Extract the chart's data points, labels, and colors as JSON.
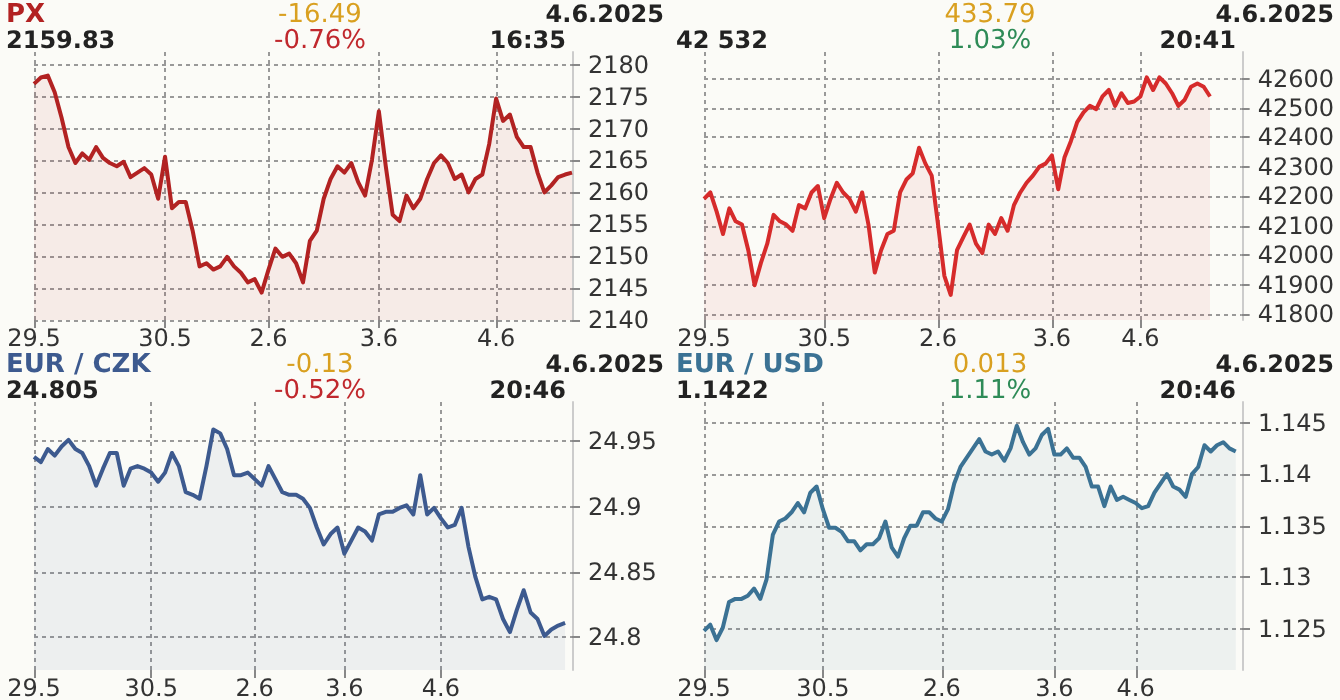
{
  "chart_data": [
    {
      "type": "area",
      "title": "PX",
      "annotations": [
        "2159.83",
        "-16.49",
        "-0.76%",
        "4.6.2025",
        "16:35"
      ],
      "categories": [
        "29.5",
        null,
        null,
        null,
        null,
        null,
        null,
        null,
        null,
        null,
        null,
        null,
        null,
        null,
        null,
        null,
        null,
        null,
        null,
        "30.5",
        null,
        null,
        null,
        null,
        null,
        null,
        null,
        null,
        null,
        null,
        null,
        null,
        null,
        null,
        "2.6",
        null,
        null,
        null,
        null,
        null,
        null,
        null,
        null,
        null,
        null,
        null,
        null,
        null,
        null,
        null,
        "3.6",
        null,
        null,
        null,
        null,
        null,
        null,
        null,
        null,
        null,
        null,
        null,
        null,
        null,
        null,
        null,
        null,
        "4.6",
        null,
        null,
        null,
        null,
        null,
        null,
        null,
        null,
        null,
        null,
        null
      ],
      "series": [
        {
          "color": "#b22222",
          "values": [
            2177.0,
            2178.0,
            2178.3,
            2175.7,
            2171.7,
            2167.1,
            2164.6,
            2166.1,
            2165.1,
            2167.1,
            2165.4,
            2164.6,
            2164.1,
            2164.8,
            2162.4,
            2163.1,
            2163.8,
            2162.8,
            2159.0,
            2165.6,
            2157.5,
            2158.5,
            2158.5,
            2154.0,
            2148.4,
            2148.9,
            2147.9,
            2148.4,
            2149.9,
            2148.4,
            2147.4,
            2145.9,
            2146.4,
            2144.3,
            2147.9,
            2151.2,
            2149.9,
            2150.4,
            2148.9,
            2145.9,
            2152.4,
            2154.0,
            2159.0,
            2162.1,
            2164.1,
            2163.1,
            2164.6,
            2161.6,
            2159.5,
            2165.1,
            2172.7,
            2164.1,
            2156.5,
            2155.5,
            2159.5,
            2157.5,
            2159.0,
            2162.1,
            2164.6,
            2165.8,
            2164.6,
            2162.1,
            2162.8,
            2160.0,
            2162.1,
            2162.8,
            2167.6,
            2174.7,
            2171.2,
            2172.2,
            2168.7,
            2167.1,
            2167.1,
            2163.1,
            2160.0,
            2161.1,
            2162.4,
            2162.8,
            2163.1
          ]
        }
      ],
      "ylim": [
        2140,
        2182
      ],
      "yticks": [
        2140,
        2145,
        2150,
        2155,
        2160,
        2165,
        2170,
        2175,
        2180
      ],
      "grid": true
    },
    {
      "type": "area",
      "annotations": [
        "42 532",
        "433.79",
        "1.03%",
        "4.6.2025",
        "20:41"
      ],
      "categories": [
        "29.5",
        null,
        null,
        null,
        null,
        null,
        null,
        null,
        null,
        null,
        null,
        null,
        null,
        null,
        null,
        null,
        null,
        null,
        null,
        "30.5",
        null,
        null,
        null,
        null,
        null,
        null,
        null,
        null,
        null,
        null,
        null,
        null,
        null,
        null,
        null,
        null,
        null,
        "2.6",
        null,
        null,
        null,
        null,
        null,
        null,
        null,
        null,
        null,
        null,
        null,
        null,
        null,
        null,
        null,
        null,
        null,
        "3.6",
        null,
        null,
        null,
        null,
        null,
        null,
        null,
        null,
        null,
        null,
        null,
        null,
        null,
        "4.6",
        null,
        null,
        null,
        null,
        null,
        null,
        null,
        null,
        null,
        null,
        null,
        null,
        null,
        null,
        null,
        null
      ],
      "series": [
        {
          "color": "#d62b2b",
          "values": [
            42191,
            42213,
            42148,
            42072,
            42159,
            42115,
            42104,
            42017,
            41898,
            41974,
            42039,
            42137,
            42115,
            42104,
            42083,
            42170,
            42159,
            42213,
            42235,
            42126,
            42191,
            42246,
            42213,
            42191,
            42148,
            42213,
            42104,
            41941,
            42017,
            42072,
            42083,
            42213,
            42257,
            42278,
            42365,
            42311,
            42270,
            42104,
            41930,
            41865,
            42017,
            42061,
            42104,
            42039,
            42007,
            42104,
            42072,
            42126,
            42083,
            42170,
            42213,
            42246,
            42270,
            42300,
            42311,
            42339,
            42224,
            42333,
            42387,
            42452,
            42485,
            42507,
            42496,
            42539,
            42561,
            42507,
            42550,
            42517,
            42522,
            42539,
            42604,
            42561,
            42604,
            42583,
            42550,
            42507,
            42528,
            42572,
            42583,
            42572,
            42539,
            null,
            null,
            null,
            null,
            null
          ]
        }
      ],
      "ylim": [
        41780,
        42690
      ],
      "yticks": [
        41800,
        41900,
        42000,
        42100,
        42200,
        42300,
        42400,
        42500,
        42600
      ],
      "grid": true
    },
    {
      "type": "area",
      "title": "EUR / CZK",
      "annotations": [
        "24.805",
        "-0.13",
        "-0.52%",
        "4.6.2025",
        "20:46"
      ],
      "categories": [
        "29.5",
        null,
        null,
        null,
        null,
        null,
        null,
        null,
        null,
        null,
        null,
        null,
        null,
        null,
        null,
        null,
        null,
        "30.5",
        null,
        null,
        null,
        null,
        null,
        null,
        null,
        null,
        null,
        null,
        null,
        null,
        null,
        null,
        "2.6",
        null,
        null,
        null,
        null,
        null,
        null,
        null,
        null,
        null,
        null,
        null,
        null,
        "3.6",
        null,
        null,
        null,
        null,
        null,
        null,
        null,
        null,
        null,
        null,
        null,
        null,
        null,
        "4.6",
        null,
        null,
        null,
        null,
        null,
        null,
        null,
        null,
        null,
        null,
        null,
        null,
        null,
        null,
        null,
        null,
        null,
        null,
        null
      ],
      "series": [
        {
          "color": "#3d5a8f",
          "values": [
            24.938,
            24.934,
            24.944,
            24.939,
            24.946,
            24.951,
            24.944,
            24.941,
            24.931,
            24.916,
            24.929,
            24.941,
            24.941,
            24.916,
            24.929,
            24.931,
            24.929,
            24.926,
            24.919,
            24.926,
            24.941,
            24.931,
            24.911,
            24.909,
            24.906,
            24.931,
            24.959,
            24.956,
            24.944,
            24.924,
            24.924,
            24.926,
            24.921,
            24.916,
            24.931,
            24.921,
            24.911,
            24.909,
            24.909,
            24.906,
            24.899,
            24.884,
            24.871,
            24.879,
            24.884,
            24.864,
            24.874,
            24.884,
            24.881,
            24.874,
            24.894,
            24.896,
            24.896,
            24.899,
            24.901,
            24.894,
            24.924,
            24.894,
            24.899,
            24.891,
            24.884,
            24.886,
            24.899,
            24.869,
            24.846,
            24.829,
            24.831,
            24.829,
            24.814,
            24.804,
            24.821,
            24.836,
            24.819,
            24.814,
            24.801,
            24.806,
            24.809,
            24.811,
            null
          ]
        }
      ],
      "ylim": [
        24.775,
        24.98
      ],
      "yticks": [
        24.8,
        24.85,
        24.9,
        24.95
      ],
      "grid": true
    },
    {
      "type": "area",
      "title": "EUR / USD",
      "annotations": [
        "1.1422",
        "0.013",
        "1.11%",
        "4.6.2025",
        "20:46"
      ],
      "categories": [
        "29.5",
        null,
        null,
        null,
        null,
        null,
        null,
        null,
        null,
        null,
        null,
        null,
        null,
        null,
        null,
        null,
        null,
        null,
        null,
        "30.5",
        null,
        null,
        null,
        null,
        null,
        null,
        null,
        null,
        null,
        null,
        null,
        null,
        null,
        null,
        null,
        null,
        null,
        null,
        "2.6",
        null,
        null,
        null,
        null,
        null,
        null,
        null,
        null,
        null,
        null,
        null,
        null,
        null,
        null,
        null,
        null,
        null,
        "3.6",
        null,
        null,
        null,
        null,
        null,
        null,
        null,
        null,
        null,
        null,
        null,
        null,
        "4.6",
        null,
        null,
        null,
        null,
        null,
        null,
        null,
        null,
        null,
        null,
        null,
        null,
        null,
        null,
        null,
        null,
        null
      ],
      "series": [
        {
          "color": "#3b7294",
          "values": [
            1.1248,
            1.1254,
            1.1239,
            1.1251,
            1.1276,
            1.1279,
            1.1279,
            1.1282,
            1.1289,
            1.1279,
            1.1298,
            1.1341,
            1.1354,
            1.1357,
            1.1363,
            1.1372,
            1.1363,
            1.1382,
            1.1388,
            1.1366,
            1.1348,
            1.1348,
            1.1344,
            1.1335,
            1.1335,
            1.1326,
            1.1332,
            1.1332,
            1.1338,
            1.1354,
            1.1329,
            1.132,
            1.1338,
            1.135,
            1.135,
            1.1363,
            1.1363,
            1.1357,
            1.1354,
            1.1366,
            1.1391,
            1.1407,
            1.1416,
            1.1425,
            1.1434,
            1.1422,
            1.1419,
            1.1422,
            1.1413,
            1.1425,
            1.1447,
            1.1431,
            1.1419,
            1.1425,
            1.1438,
            1.1444,
            1.1419,
            1.1419,
            1.1425,
            1.1416,
            1.1416,
            1.1407,
            1.1388,
            1.1388,
            1.1369,
            1.1388,
            1.1375,
            1.1378,
            1.1375,
            1.1372,
            1.1367,
            1.1369,
            1.1382,
            1.1391,
            1.14,
            1.1388,
            1.1385,
            1.1378,
            1.14,
            1.1407,
            1.1428,
            1.1422,
            1.1428,
            1.1431,
            1.1425,
            1.1422,
            null
          ]
        }
      ],
      "ylim": [
        1.121,
        1.147
      ],
      "yticks": [
        1.125,
        1.13,
        1.135,
        1.14,
        1.145
      ],
      "grid": true
    }
  ]
}
